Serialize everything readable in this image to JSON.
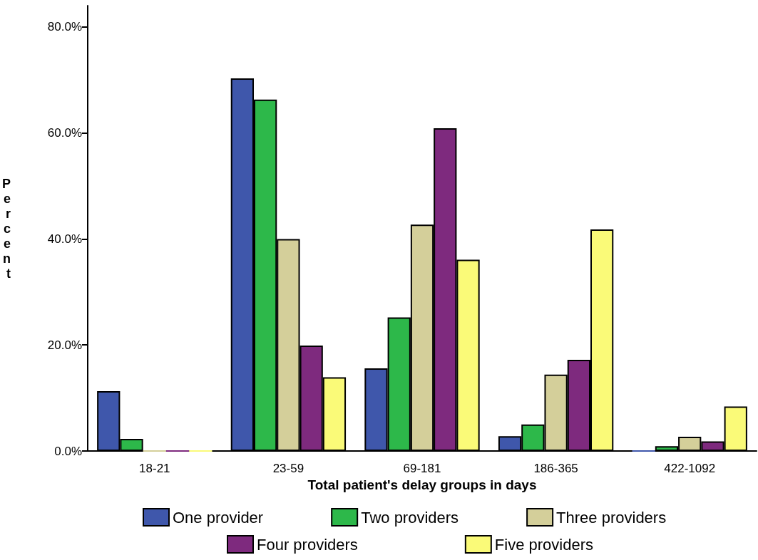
{
  "chart_data": {
    "type": "bar",
    "xlabel": "Total patient's delay groups in days",
    "ylabel": "Percent",
    "categories": [
      "18-21",
      "23-59",
      "69-181",
      "186-365",
      "422-1092"
    ],
    "series": [
      {
        "name": "One provider",
        "color": "#3f57ab",
        "values": [
          11.3,
          70.3,
          15.6,
          2.8,
          0
        ]
      },
      {
        "name": "Two providers",
        "color": "#2db84a",
        "values": [
          2.3,
          66.3,
          25.2,
          5.0,
          0.9
        ]
      },
      {
        "name": "Three providers",
        "color": "#d4cf9a",
        "values": [
          0,
          40.0,
          42.7,
          14.4,
          2.7
        ]
      },
      {
        "name": "Four providers",
        "color": "#7e2a7e",
        "values": [
          0,
          19.9,
          60.9,
          17.2,
          1.8
        ]
      },
      {
        "name": "Five providers",
        "color": "#fafa78",
        "values": [
          0,
          13.9,
          36.1,
          41.8,
          8.4
        ]
      }
    ],
    "ylim": [
      0,
      84
    ],
    "yticks": [
      {
        "value": 0,
        "label": "0.0%"
      },
      {
        "value": 20,
        "label": "20.0%"
      },
      {
        "value": 40,
        "label": "40.0%"
      },
      {
        "value": 60,
        "label": "60.0%"
      },
      {
        "value": 80,
        "label": "80.0%"
      }
    ],
    "grid": false,
    "legend": "bottom"
  }
}
